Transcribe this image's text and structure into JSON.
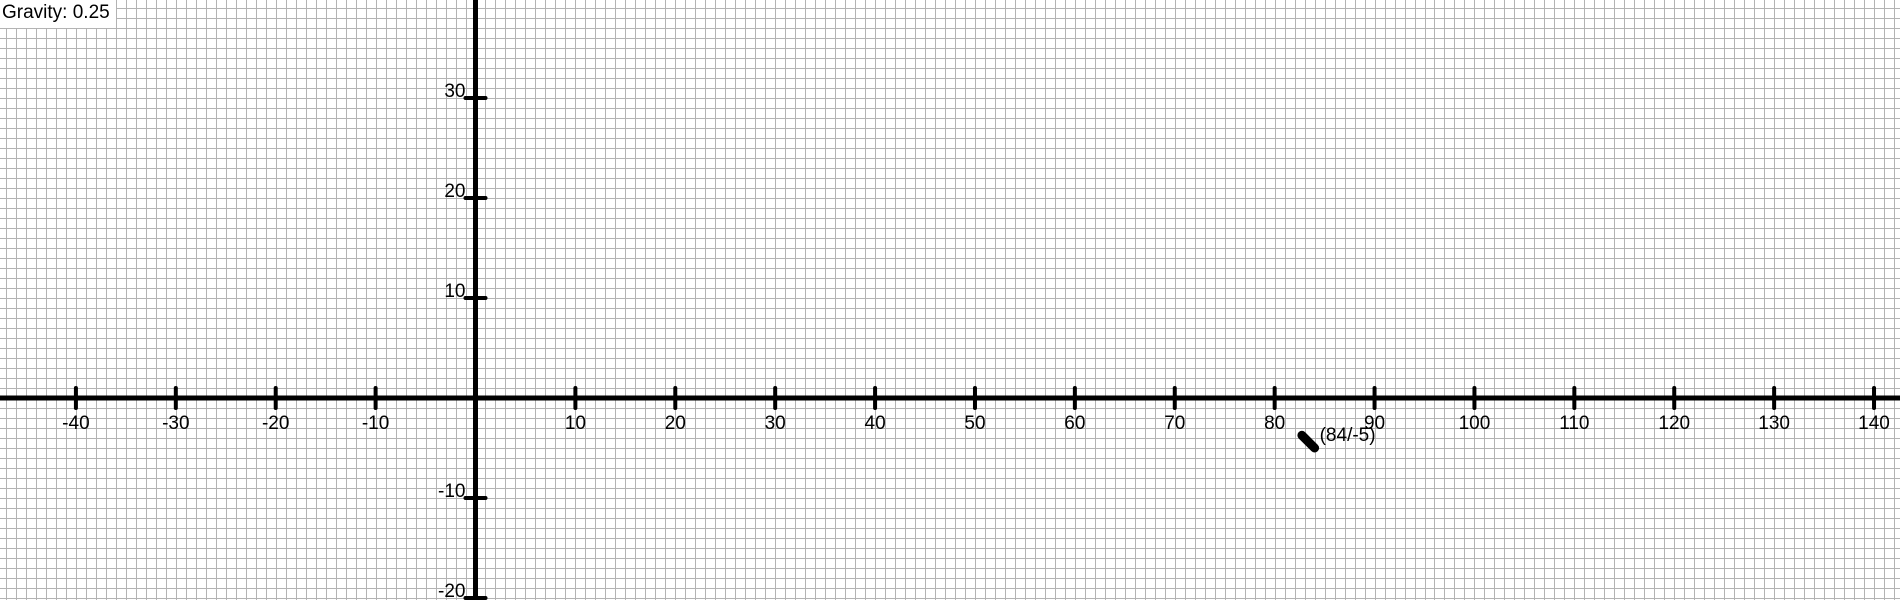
{
  "overlay": {
    "gravity_label": "Gravity:",
    "gravity_value": "0.25"
  },
  "graph": {
    "grid_minor_step": 1,
    "x_range": [
      -47.6,
      142.6
    ],
    "y_range": [
      -20.2,
      39.8
    ],
    "x_ticks": [
      -40,
      -30,
      -20,
      -10,
      10,
      20,
      30,
      40,
      50,
      60,
      70,
      80,
      90,
      100,
      110,
      120,
      130,
      140
    ],
    "y_ticks": [
      30,
      20,
      10,
      -10,
      -20
    ],
    "colors": {
      "grid": "#b3b3b3",
      "axis": "#000000",
      "background": "#ffffff"
    }
  },
  "particle": {
    "position": [
      84,
      -5
    ],
    "label": "(84/-5)",
    "direction": [
      -1,
      1
    ]
  }
}
